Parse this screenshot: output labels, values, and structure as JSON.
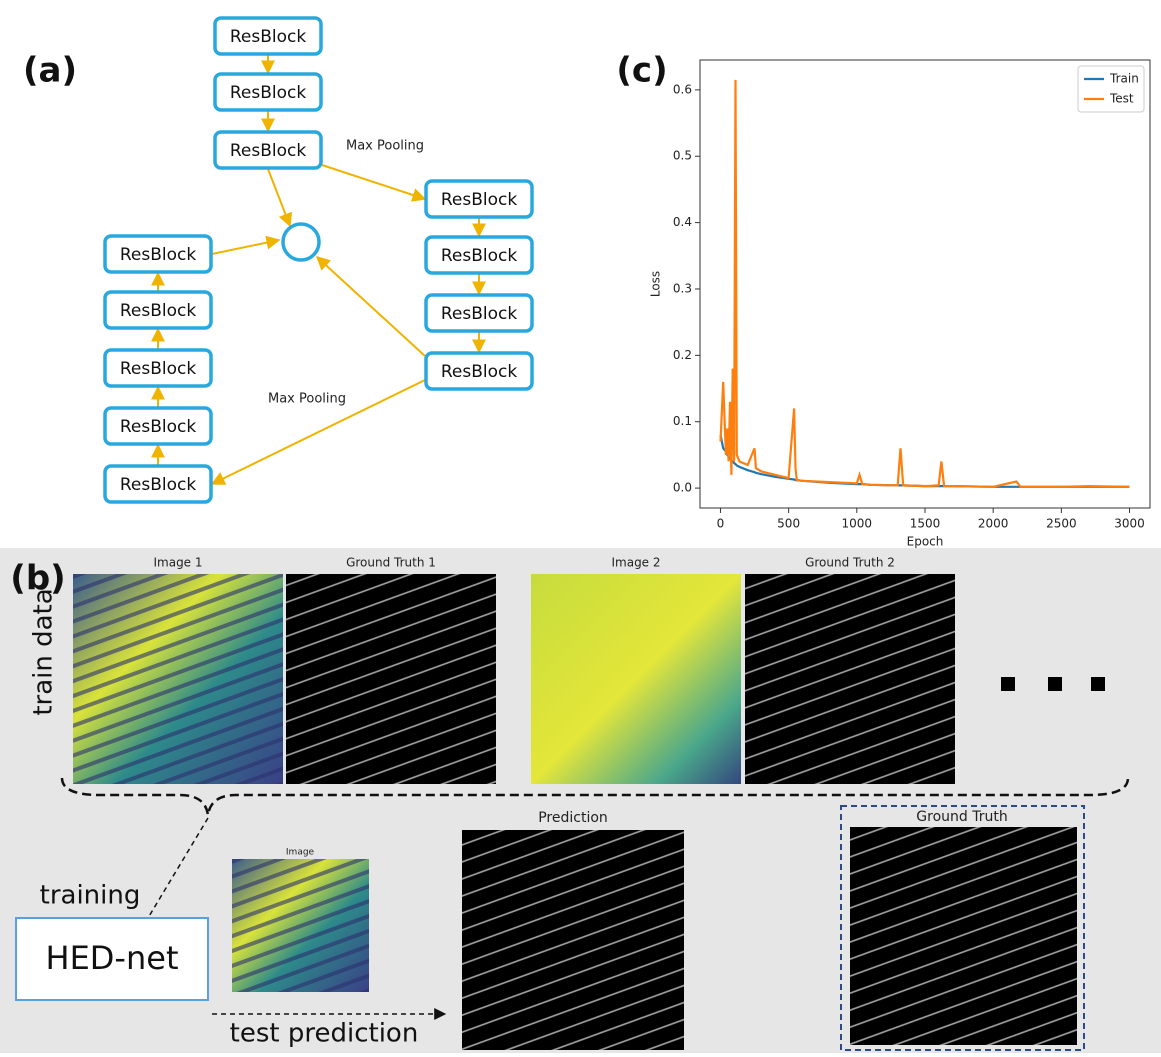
{
  "panel_a": {
    "label": "(a)",
    "nodes": [
      "ResBlock",
      "ResBlock",
      "ResBlock",
      "ResBlock",
      "ResBlock",
      "ResBlock",
      "ResBlock",
      "ResBlock",
      "ResBlock",
      "ResBlock",
      "ResBlock",
      "ResBlock"
    ],
    "edge_labels": [
      "Max Pooling",
      "Max Pooling"
    ]
  },
  "chart_data": {
    "type": "line",
    "label": "(c)",
    "xlabel": "Epoch",
    "ylabel": "Loss",
    "x": [
      0,
      20,
      40,
      50,
      60,
      70,
      80,
      90,
      100,
      110,
      120,
      140,
      200,
      250,
      260,
      300,
      400,
      500,
      540,
      550,
      560,
      600,
      800,
      1000,
      1020,
      1040,
      1100,
      1300,
      1320,
      1340,
      1500,
      1600,
      1620,
      1640,
      1700,
      2000,
      2170,
      2200,
      2500,
      2700,
      3000
    ],
    "series": [
      {
        "name": "Train",
        "color": "#1f77b4",
        "values": [
          0.08,
          0.06,
          0.055,
          0.05,
          0.048,
          0.045,
          0.042,
          0.04,
          0.038,
          0.036,
          0.034,
          0.032,
          0.027,
          0.024,
          0.023,
          0.021,
          0.017,
          0.014,
          0.013,
          0.012,
          0.012,
          0.011,
          0.008,
          0.006,
          0.006,
          0.006,
          0.005,
          0.004,
          0.004,
          0.004,
          0.003,
          0.003,
          0.003,
          0.003,
          0.003,
          0.002,
          0.002,
          0.002,
          0.002,
          0.002,
          0.002
        ]
      },
      {
        "name": "Test",
        "color": "#ff7f0e",
        "values": [
          0.07,
          0.16,
          0.05,
          0.09,
          0.04,
          0.13,
          0.02,
          0.18,
          0.04,
          0.615,
          0.05,
          0.04,
          0.035,
          0.06,
          0.03,
          0.025,
          0.02,
          0.015,
          0.12,
          0.03,
          0.012,
          0.011,
          0.009,
          0.007,
          0.02,
          0.006,
          0.005,
          0.004,
          0.06,
          0.004,
          0.003,
          0.004,
          0.04,
          0.003,
          0.003,
          0.002,
          0.01,
          0.002,
          0.002,
          0.003,
          0.002
        ]
      }
    ],
    "xlim": [
      -150,
      3150
    ],
    "ylim": [
      -0.03,
      0.645
    ],
    "xticks": [
      0,
      500,
      1000,
      1500,
      2000,
      2500,
      3000
    ],
    "yticks": [
      {
        "value": 0,
        "label": "0.0"
      },
      0.1,
      0.2,
      0.3,
      0.4,
      0.5,
      0.6
    ],
    "legend": "upper right"
  },
  "panel_b": {
    "label": "(b)",
    "train_label": "train data",
    "train_titles": [
      "Image 1",
      "Ground Truth 1",
      "Image 2",
      "Ground Truth 2"
    ],
    "training": "training",
    "model": "HED-net",
    "test_prediction": "test prediction",
    "test_titles": [
      "Image",
      "Prediction",
      "Ground Truth"
    ]
  }
}
